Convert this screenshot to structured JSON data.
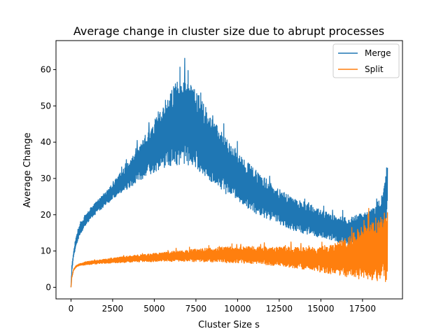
{
  "chart_data": {
    "type": "line",
    "title": "Average change in cluster size due to abrupt processes",
    "xlabel": "Cluster Size s",
    "ylabel": "Average Change",
    "xlim": [
      -900,
      19900
    ],
    "ylim": [
      -3.2,
      68
    ],
    "xticks": [
      0,
      2500,
      5000,
      7500,
      10000,
      12500,
      15000,
      17500
    ],
    "xtick_labels": [
      "0",
      "2500",
      "5000",
      "7500",
      "10000",
      "12500",
      "15000",
      "17500"
    ],
    "yticks": [
      0,
      10,
      20,
      30,
      40,
      50,
      60
    ],
    "ytick_labels": [
      "0",
      "10",
      "20",
      "30",
      "40",
      "50",
      "60"
    ],
    "grid": false,
    "legend_position": "top-right",
    "series": [
      {
        "name": "Merge",
        "color": "#1f77b4",
        "note_shape": "noisy band",
        "x": [
          1,
          50,
          150,
          300,
          500,
          800,
          1200,
          1700,
          2200,
          2700,
          3200,
          3700,
          4200,
          4700,
          5200,
          5700,
          6200,
          6700,
          7200,
          7700,
          8200,
          8700,
          9200,
          9700,
          10200,
          10700,
          11200,
          11700,
          12200,
          12700,
          13200,
          13700,
          14200,
          14700,
          15200,
          15700,
          16200,
          16700,
          17200,
          17700,
          18200,
          18700,
          19000
        ],
        "upper": [
          0,
          6,
          10,
          14,
          17,
          19.5,
          22,
          24.5,
          27,
          30,
          33,
          36,
          40,
          44,
          48,
          52,
          56,
          58,
          56,
          53,
          49,
          45,
          42,
          39,
          36.5,
          34,
          32,
          30,
          28,
          26.5,
          25,
          24,
          23,
          22,
          21,
          20,
          19.5,
          19.5,
          20,
          21,
          22,
          26,
          35.5
        ],
        "lower": [
          0,
          4,
          8,
          11,
          14,
          16.5,
          19,
          21,
          23,
          25,
          26.5,
          28,
          29.5,
          31,
          32,
          33,
          33.5,
          33.5,
          33,
          31.5,
          30,
          28,
          26,
          24.5,
          23,
          21.5,
          20,
          19,
          18,
          17,
          16,
          15,
          14.5,
          14,
          13.5,
          13,
          12,
          11,
          11.5,
          13,
          12,
          13,
          20
        ]
      },
      {
        "name": "Split",
        "color": "#ff7f0e",
        "note_shape": "noisy band",
        "x": [
          1,
          50,
          150,
          300,
          500,
          800,
          1200,
          1700,
          2200,
          2700,
          3200,
          3700,
          4200,
          4700,
          5200,
          5700,
          6200,
          6700,
          7200,
          7700,
          8200,
          8700,
          9200,
          9700,
          10200,
          10700,
          11200,
          11700,
          12200,
          12700,
          13200,
          13700,
          14200,
          14700,
          15200,
          15700,
          16200,
          16700,
          17200,
          17700,
          18200,
          18700,
          19000
        ],
        "upper": [
          0,
          3,
          5,
          6,
          6.5,
          7,
          7.3,
          7.6,
          7.9,
          8.2,
          8.5,
          8.8,
          9,
          9.2,
          9.5,
          9.7,
          10,
          10.2,
          10.4,
          10.6,
          10.8,
          11,
          11.1,
          11.2,
          11.3,
          11.3,
          11.3,
          11.2,
          11.2,
          11.2,
          11.1,
          11,
          11,
          11,
          11.5,
          12,
          13,
          14,
          16,
          18,
          19,
          20,
          22
        ],
        "lower": [
          0,
          2.5,
          4.5,
          5.5,
          5.9,
          6.1,
          6.3,
          6.5,
          6.6,
          6.7,
          6.8,
          6.9,
          7,
          7,
          7.1,
          7.1,
          7.1,
          7.1,
          7.1,
          7,
          7,
          6.9,
          6.8,
          6.7,
          6.6,
          6.5,
          6.3,
          6.1,
          5.9,
          5.7,
          5.4,
          5.1,
          4.8,
          4.4,
          4,
          3.6,
          3.2,
          2.8,
          2.4,
          2,
          1.8,
          1.6,
          1.5
        ]
      }
    ]
  }
}
